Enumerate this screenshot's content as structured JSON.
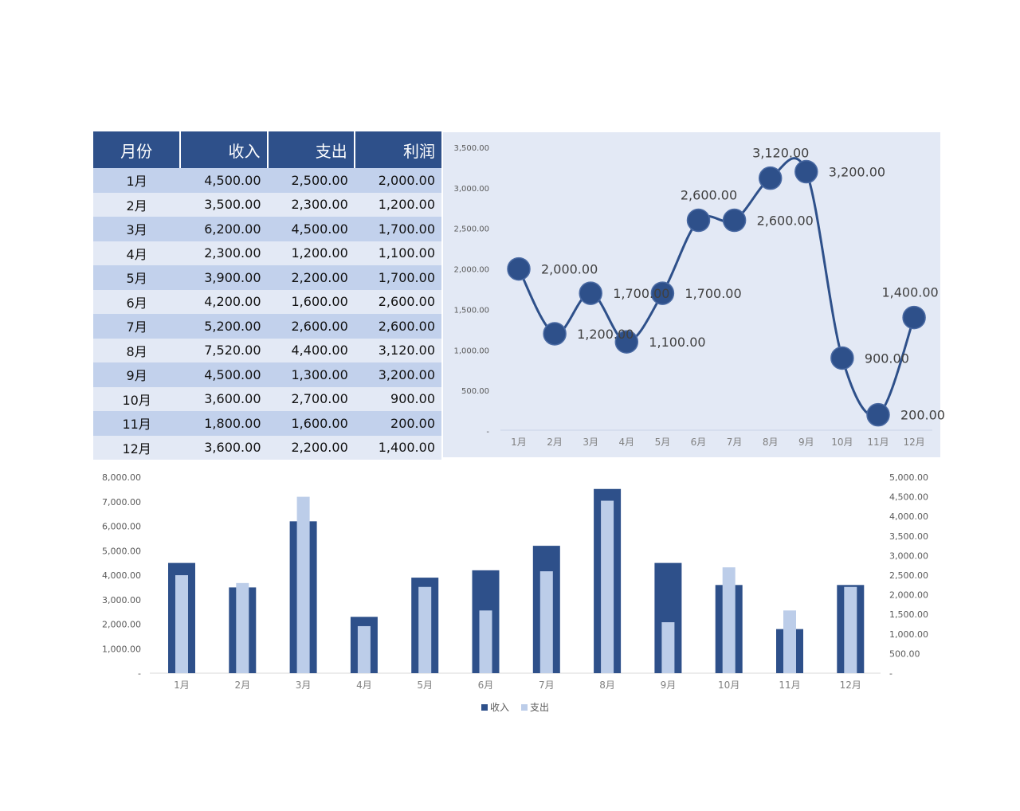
{
  "table": {
    "headers": [
      "月份",
      "收入",
      "支出",
      "利润"
    ],
    "rows": [
      [
        "1月",
        "4,500.00",
        "2,500.00",
        "2,000.00"
      ],
      [
        "2月",
        "3,500.00",
        "2,300.00",
        "1,200.00"
      ],
      [
        "3月",
        "6,200.00",
        "4,500.00",
        "1,700.00"
      ],
      [
        "4月",
        "2,300.00",
        "1,200.00",
        "1,100.00"
      ],
      [
        "5月",
        "3,900.00",
        "2,200.00",
        "1,700.00"
      ],
      [
        "6月",
        "4,200.00",
        "1,600.00",
        "2,600.00"
      ],
      [
        "7月",
        "5,200.00",
        "2,600.00",
        "2,600.00"
      ],
      [
        "8月",
        "7,520.00",
        "4,400.00",
        "3,120.00"
      ],
      [
        "9月",
        "4,500.00",
        "1,300.00",
        "3,200.00"
      ],
      [
        "10月",
        "3,600.00",
        "2,700.00",
        "900.00"
      ],
      [
        "11月",
        "1,800.00",
        "1,600.00",
        "200.00"
      ],
      [
        "12月",
        "3,600.00",
        "2,200.00",
        "1,400.00"
      ]
    ]
  },
  "colors": {
    "header_bg": "#2e508a",
    "row_dark": "#c2d1ec",
    "row_light": "#e3e9f5",
    "chart_bg": "#e3e9f5",
    "series_dark": "#2e508a",
    "series_light": "#bccde9",
    "axis_text": "#595959"
  },
  "chart_data": [
    {
      "type": "line",
      "smooth": true,
      "categories": [
        "1月",
        "2月",
        "3月",
        "4月",
        "5月",
        "6月",
        "7月",
        "8月",
        "9月",
        "10月",
        "11月",
        "12月"
      ],
      "series": [
        {
          "values": [
            2000,
            1200,
            1700,
            1100,
            1700,
            2600,
            2600,
            3120,
            3200,
            900,
            200,
            1400
          ]
        }
      ],
      "data_labels": [
        "2,000.00",
        "1,200.00",
        "1,700.00",
        "1,100.00",
        "1,700.00",
        "2,600.00",
        "2,600.00",
        "3,120.00",
        "3,200.00",
        "900.00",
        "200.00",
        "1,400.00"
      ],
      "ylim": [
        0,
        3500
      ],
      "yticks": [
        0,
        500,
        1000,
        1500,
        2000,
        2500,
        3000,
        3500
      ],
      "ytick_labels": [
        "-",
        "500.00",
        "1,000.00",
        "1,500.00",
        "2,000.00",
        "2,500.00",
        "3,000.00",
        "3,500.00"
      ],
      "grid": false,
      "legend": "none"
    },
    {
      "type": "bar",
      "categories": [
        "1月",
        "2月",
        "3月",
        "4月",
        "5月",
        "6月",
        "7月",
        "8月",
        "9月",
        "10月",
        "11月",
        "12月"
      ],
      "series": [
        {
          "name": "收入",
          "axis": "left",
          "values": [
            4500,
            3500,
            6200,
            2300,
            3900,
            4200,
            5200,
            7520,
            4500,
            3600,
            1800,
            3600
          ]
        },
        {
          "name": "支出",
          "axis": "right",
          "values": [
            2500,
            2300,
            4500,
            1200,
            2200,
            1600,
            2600,
            4400,
            1300,
            2700,
            1600,
            2200
          ]
        }
      ],
      "ylim_left": [
        0,
        8000
      ],
      "yticks_left": [
        0,
        1000,
        2000,
        3000,
        4000,
        5000,
        6000,
        7000,
        8000
      ],
      "ytick_labels_left": [
        "-",
        "1,000.00",
        "2,000.00",
        "3,000.00",
        "4,000.00",
        "5,000.00",
        "6,000.00",
        "7,000.00",
        "8,000.00"
      ],
      "ylim_right": [
        0,
        5000
      ],
      "yticks_right": [
        0,
        500,
        1000,
        1500,
        2000,
        2500,
        3000,
        3500,
        4000,
        4500,
        5000
      ],
      "ytick_labels_right": [
        "-",
        "500.00",
        "1,000.00",
        "1,500.00",
        "2,000.00",
        "2,500.00",
        "3,000.00",
        "3,500.00",
        "4,000.00",
        "4,500.00",
        "5,000.00"
      ],
      "grid": false,
      "legend": "bottom"
    }
  ]
}
